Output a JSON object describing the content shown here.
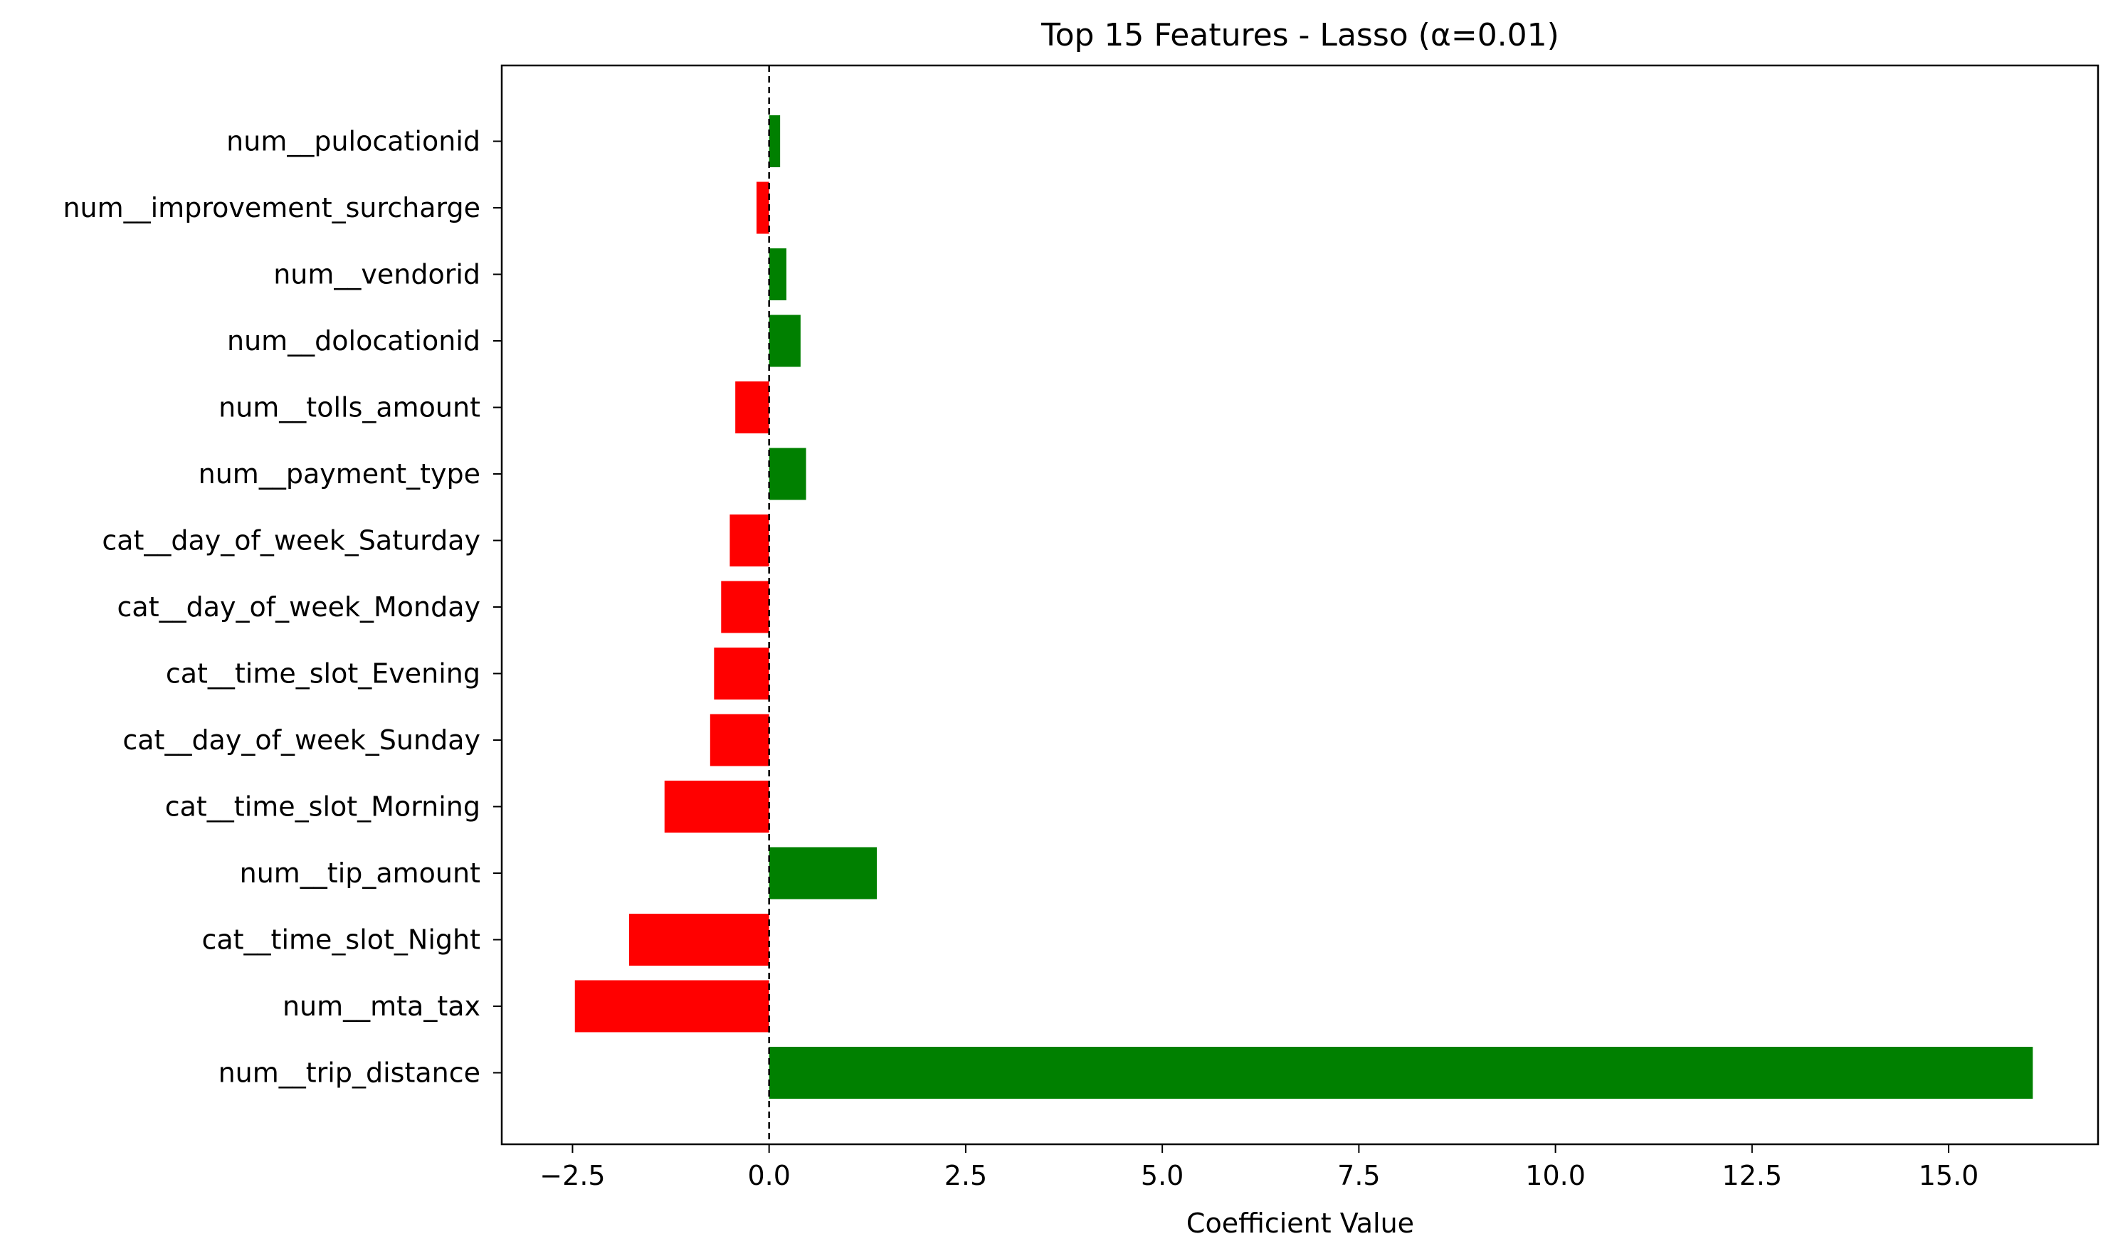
{
  "chart_data": {
    "type": "bar",
    "orientation": "horizontal",
    "title": "Top 15 Features - Lasso (α=0.01)",
    "xlabel": "Coefficient Value",
    "ylabel": "",
    "xlim": [
      -3.4,
      16.9
    ],
    "xticks": [
      -2.5,
      0.0,
      2.5,
      5.0,
      7.5,
      10.0,
      12.5,
      15.0
    ],
    "xtick_labels": [
      "−2.5",
      "0.0",
      "2.5",
      "5.0",
      "7.5",
      "10.0",
      "12.5",
      "15.0"
    ],
    "categories": [
      "num__pulocationid",
      "num__improvement_surcharge",
      "num__vendorid",
      "num__dolocationid",
      "num__tolls_amount",
      "num__payment_type",
      "cat__day_of_week_Saturday",
      "cat__day_of_week_Monday",
      "cat__time_slot_Evening",
      "cat__day_of_week_Sunday",
      "cat__time_slot_Morning",
      "num__tip_amount",
      "cat__time_slot_Night",
      "num__mta_tax",
      "num__trip_distance"
    ],
    "values": [
      0.14,
      -0.16,
      0.22,
      0.4,
      -0.43,
      0.47,
      -0.5,
      -0.61,
      -0.7,
      -0.75,
      -1.33,
      1.37,
      -1.78,
      -2.47,
      16.07
    ],
    "positive_color": "#008000",
    "negative_color": "#ff0000",
    "zero_line": {
      "style": "dashed",
      "color": "#000000"
    },
    "grid": false,
    "legend": "none"
  }
}
